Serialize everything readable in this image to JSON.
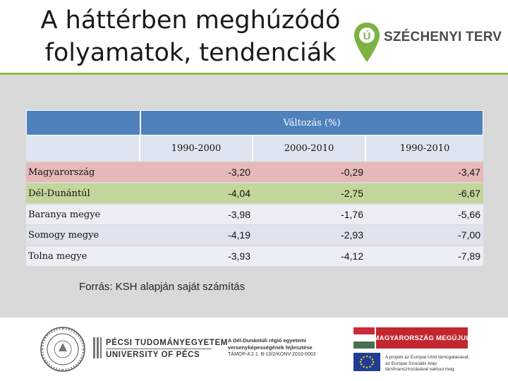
{
  "header": {
    "title_line1": "A háttérben meghúzódó",
    "title_line2": "folyamatok, tendenciák",
    "logo_text": "SZÉCHENYI TERV",
    "logo_badge": "Ú"
  },
  "table": {
    "group_header": "Változás (%)",
    "periods": [
      "1990-2000",
      "2000-2010",
      "1990-2010"
    ],
    "rows": [
      {
        "region": "Magyarország",
        "values": [
          "-3,20",
          "-0,29",
          "-3,47"
        ]
      },
      {
        "region": "Dél-Dunántúl",
        "values": [
          "-4,04",
          "-2,75",
          "-6,67"
        ]
      },
      {
        "region": "Baranya megye",
        "values": [
          "-3,98",
          "-1,76",
          "-5,66"
        ]
      },
      {
        "region": "Somogy megye",
        "values": [
          "-4,19",
          "-2,93",
          "-7,00"
        ]
      },
      {
        "region": "Tolna megye",
        "values": [
          "-3,93",
          "-4,12",
          "-7,89"
        ]
      }
    ]
  },
  "source": "Forrás: KSH alapján saját számítás",
  "footer": {
    "university_hu": "PÉCSI TUDOMÁNYEGYETEM",
    "university_en": "UNIVERSITY OF PÉCS",
    "project_line1": "A Dél-Dunántúli régió egyetemi",
    "project_line2": "versenyképességének fejlesztése",
    "project_code": "TÁMOP-4.2.1. B-10/2/KONV-2010-0002",
    "badge_text": "MAGYARORSZÁG MEGÚJUL",
    "eu_line1": "A projekt az Európai Unió támogatásával,",
    "eu_line2": "az Európai Szociális Alap",
    "eu_line3": "társfinanszírozásával valósul meg."
  },
  "colors": {
    "header_blue": "#4f81bd",
    "row_pink": "#e6b9b8",
    "row_green": "#c3d69b",
    "accent_green": "#8fbf3f"
  }
}
